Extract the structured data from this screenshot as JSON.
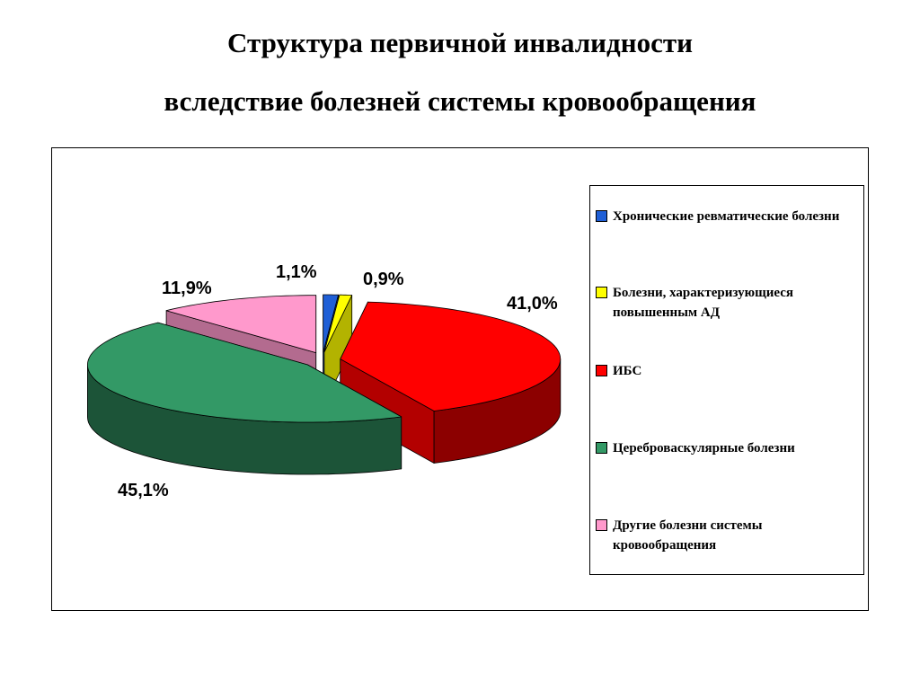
{
  "title": {
    "line1": "Структура первичной инвалидности",
    "line2": "вследствие болезней системы кровообращения"
  },
  "chart_data": {
    "type": "pie",
    "style": "3d-exploded",
    "title": "Структура первичной инвалидности вследствие болезней системы кровообращения",
    "legend_position": "right",
    "slices": [
      {
        "name": "Хронические ревматические болезни",
        "value": 1.1,
        "label": "1,1%",
        "color": "#1f5fd6"
      },
      {
        "name": "Болезни, характеризующиеся повышенным АД",
        "value": 0.9,
        "label": "0,9%",
        "color": "#ffff00"
      },
      {
        "name": "ИБС",
        "value": 41.0,
        "label": "41,0%",
        "color": "#ff0000"
      },
      {
        "name": "Цереброваскулярные болезни",
        "value": 45.1,
        "label": "45,1%",
        "color": "#339966"
      },
      {
        "name": "Другие болезни системы кровообращения",
        "value": 11.9,
        "label": "11,9%",
        "color": "#ff99cc"
      }
    ]
  }
}
